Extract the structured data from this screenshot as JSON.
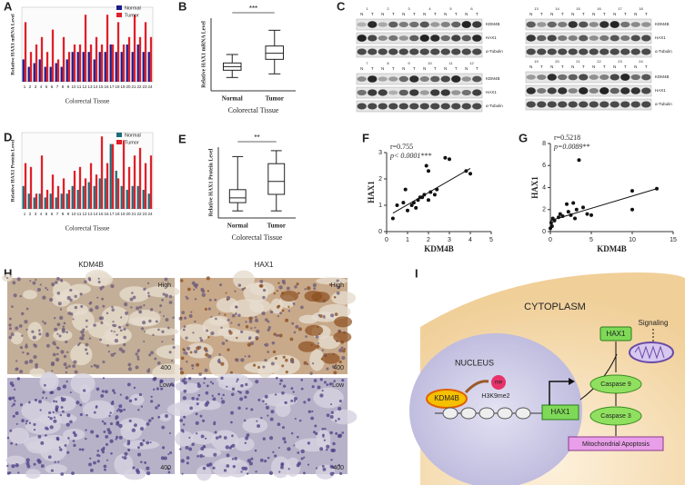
{
  "panels": [
    "A",
    "B",
    "C",
    "D",
    "E",
    "F",
    "G",
    "H",
    "I"
  ],
  "chart_data": [
    {
      "type": "bar",
      "ylabel": "Relative HAX1 mRNA Level",
      "xlabel": "Colorectal Tissue",
      "categories": [
        "1",
        "2",
        "3",
        "4",
        "5",
        "6",
        "7",
        "8",
        "9",
        "10",
        "11",
        "12",
        "13",
        "14",
        "15",
        "16",
        "17",
        "18",
        "19",
        "20",
        "21",
        "22",
        "23",
        "24"
      ],
      "ylim": [
        0,
        10
      ],
      "series": [
        {
          "name": "Normal",
          "color": "#1a1a8c",
          "values": [
            3,
            2,
            2.5,
            3,
            2,
            2,
            2.5,
            2,
            3,
            4,
            4,
            4,
            4,
            3,
            4,
            4,
            5,
            4,
            4,
            5,
            4,
            5,
            4,
            4
          ]
        },
        {
          "name": "Tumor",
          "color": "#e0202a",
          "values": [
            8,
            4,
            5,
            6,
            4,
            7,
            3,
            6,
            4,
            5,
            5,
            9,
            5,
            6,
            5,
            9,
            5,
            8,
            5,
            6,
            9,
            6,
            8,
            6
          ]
        }
      ]
    },
    {
      "type": "box",
      "ylabel": "Relative HAX1 mRNA Level",
      "xlabel": "Colorectal Tissue",
      "annotation": "***",
      "categories": [
        "Normal",
        "Tumor"
      ],
      "ylim": [
        0,
        3
      ],
      "boxes": [
        {
          "min": 0.55,
          "q1": 0.85,
          "median": 1.0,
          "q3": 1.15,
          "max": 1.5
        },
        {
          "min": 0.7,
          "q1": 1.3,
          "median": 1.55,
          "q3": 1.85,
          "max": 2.5
        }
      ]
    },
    {
      "type": "bar",
      "ylabel": "Relative HAX1 Protein Level",
      "xlabel": "Colorectal Tissue",
      "categories": [
        "1",
        "2",
        "3",
        "4",
        "5",
        "6",
        "7",
        "8",
        "9",
        "10",
        "11",
        "12",
        "13",
        "14",
        "15",
        "16",
        "17",
        "18",
        "19",
        "20",
        "21",
        "22",
        "23",
        "24"
      ],
      "ylim": [
        0,
        10
      ],
      "series": [
        {
          "name": "Normal",
          "color": "#1d6b78",
          "values": [
            3,
            2,
            1.5,
            2,
            1.5,
            2,
            1.5,
            2,
            2,
            3,
            2.5,
            3,
            3.5,
            3,
            4,
            4,
            8.5,
            5,
            3,
            2.5,
            3,
            3,
            2.5,
            2
          ]
        },
        {
          "name": "Tumor",
          "color": "#e0202a",
          "values": [
            6,
            5.5,
            2,
            7,
            2.5,
            4.5,
            3,
            4,
            2.5,
            5,
            5.5,
            4,
            6,
            4.5,
            9.5,
            6,
            8.5,
            4,
            9,
            5.5,
            7,
            8,
            6,
            7
          ]
        }
      ]
    },
    {
      "type": "box",
      "ylabel": "Relative HAX1 Protein Level",
      "xlabel": "Colorectal Tissue",
      "annotation": "**",
      "categories": [
        "Normal",
        "Tumor"
      ],
      "ylim": [
        0,
        3
      ],
      "boxes": [
        {
          "min": 0.3,
          "q1": 0.65,
          "median": 0.85,
          "q3": 1.2,
          "max": 2.6
        },
        {
          "min": 0.3,
          "q1": 1.0,
          "median": 1.55,
          "q3": 2.3,
          "max": 2.85
        }
      ]
    },
    {
      "type": "scatter",
      "xlabel": "KDM4B",
      "ylabel": "HAX1",
      "stat_r": "r=0.755",
      "stat_p": "p< 0.0001***",
      "xlim": [
        0,
        5
      ],
      "ylim": [
        0,
        3
      ],
      "xticks": [
        0,
        1,
        2,
        3,
        4,
        5
      ],
      "yticks": [
        0,
        1,
        2,
        3
      ],
      "x": [
        0.3,
        0.5,
        0.8,
        0.9,
        1.0,
        1.2,
        1.3,
        1.4,
        1.5,
        1.6,
        1.7,
        1.8,
        1.9,
        2.0,
        2.0,
        2.1,
        2.3,
        2.4,
        2.8,
        3.0,
        3.8,
        4.0
      ],
      "y": [
        0.5,
        1.0,
        1.1,
        1.6,
        0.8,
        1.0,
        1.1,
        0.9,
        1.2,
        1.3,
        1.3,
        1.4,
        2.5,
        2.3,
        1.2,
        1.5,
        1.4,
        1.6,
        2.8,
        2.75,
        2.3,
        2.2
      ],
      "trend": {
        "x": [
          0.3,
          4
        ],
        "y": [
          0.7,
          2.4
        ]
      }
    },
    {
      "type": "scatter",
      "xlabel": "KDM4B",
      "ylabel": "HAX1",
      "stat_r": "r=0.5218",
      "stat_p": "p=0.0089**",
      "xlim": [
        0,
        15
      ],
      "ylim": [
        0,
        8
      ],
      "xticks": [
        0,
        5,
        10,
        15
      ],
      "yticks": [
        0,
        2,
        4,
        6,
        8
      ],
      "x": [
        0,
        0.1,
        0.2,
        0.3,
        0.5,
        1,
        1.2,
        1.5,
        2,
        2.2,
        2.5,
        2.8,
        3,
        3.2,
        3.5,
        4,
        4.5,
        5,
        10,
        10,
        13
      ],
      "y": [
        0.3,
        0.8,
        0.5,
        1.2,
        1.0,
        1.3,
        1.6,
        1.4,
        2.5,
        1.8,
        1.5,
        2.6,
        1.2,
        2,
        6.5,
        2.2,
        1.6,
        1.5,
        3.7,
        2,
        3.9
      ],
      "trend": {
        "x": [
          0,
          13
        ],
        "y": [
          1.0,
          3.9
        ]
      }
    }
  ],
  "blots": {
    "pair": [
      "N",
      "T"
    ],
    "rows": [
      "KDM4B",
      "HAX1",
      "α-Tubulin"
    ],
    "groups": [
      [
        "1",
        "2",
        "3",
        "4",
        "5",
        "6"
      ],
      [
        "7",
        "8",
        "9",
        "10",
        "11",
        "12"
      ],
      [
        "13",
        "14",
        "15",
        "16",
        "17",
        "18"
      ],
      [
        "19",
        "20",
        "21",
        "22",
        "23",
        "24"
      ]
    ]
  },
  "histology": {
    "columns": [
      "KDM4B",
      "HAX1"
    ],
    "levels": [
      "High",
      "Low"
    ],
    "magnification": "400"
  },
  "diagram": {
    "cytoplasm": "CYTOPLASM",
    "nucleus": "NUCLEUS",
    "enzyme": "KDM4B",
    "mark": "me",
    "histone": "H3K9me2",
    "gene": "HAX1",
    "protein": "HAX1",
    "signal": "Signaling",
    "step1": "Caspase 9",
    "step2": "Caspase 3",
    "outcome": "Mitochondrial Apoptosis"
  }
}
